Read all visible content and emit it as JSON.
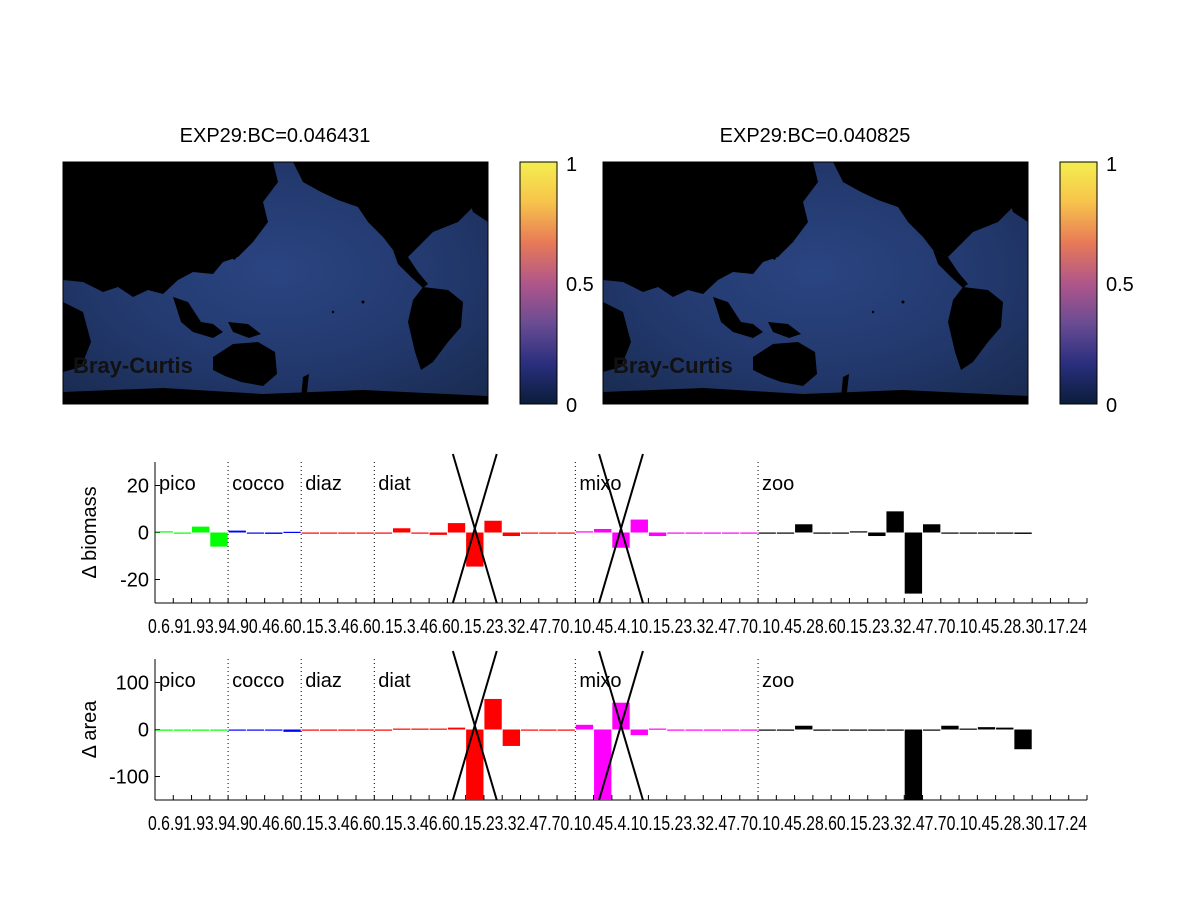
{
  "maps": [
    {
      "title": "EXP29:BC=0.046431",
      "label": "Bray-Curtis",
      "colorbar_ticks": [
        "1",
        "0.5",
        "0"
      ]
    },
    {
      "title": "EXP29:BC=0.040825",
      "label": "Bray-Curtis",
      "colorbar_ticks": [
        "1",
        "0.5",
        "0"
      ]
    }
  ],
  "colors": {
    "pico": "#00ff00",
    "cocco": "#0000ff",
    "diaz": "#ff0000",
    "diat": "#ff0000",
    "mixo": "#ff00ff",
    "zoo": "#000000",
    "land": "#000000",
    "ocean": "#243a66",
    "colormap": [
      "#0a1d3a",
      "#2a2f7e",
      "#6a4c93",
      "#b0568a",
      "#e87a57",
      "#f7c34c",
      "#f4ee4e"
    ]
  },
  "chart_data": [
    {
      "type": "bar",
      "ylabel": "Δ biomass",
      "ylim": [
        -30,
        30
      ],
      "yticks": [
        "20",
        "0",
        "-20"
      ],
      "x_tick_text": "0.6.91.93.94.90.46.60.15.3.46.60.15.3.46.60.15.23.32.47.70.10.45.4.10.15.23.32.47.70.10.45.28.60.15.23.32.47.70.10.45.28.30.17.24",
      "groups": [
        {
          "name": "pico",
          "values": [
            0.5,
            -0.5,
            2.5,
            -6
          ]
        },
        {
          "name": "cocco",
          "values": [
            0.8,
            -0.5,
            -0.6,
            0.3
          ]
        },
        {
          "name": "diaz",
          "values": [
            0,
            0,
            0,
            0
          ]
        },
        {
          "name": "diat",
          "values": [
            0,
            1.8,
            0,
            -1,
            4,
            -14.5,
            5,
            -1.5,
            0,
            0,
            0
          ]
        },
        {
          "name": "mixo",
          "values": [
            0.5,
            1.5,
            -6.5,
            5.5,
            -1.5,
            0,
            0,
            0,
            0,
            0
          ]
        },
        {
          "name": "zoo",
          "values": [
            0,
            -0.5,
            3.5,
            -0.3,
            0,
            0.5,
            -1.5,
            9,
            -26,
            3.5,
            -0.3,
            0,
            -0.3,
            0,
            -0.6
          ]
        }
      ]
    },
    {
      "type": "bar",
      "ylabel": "Δ area",
      "ylim": [
        -150,
        150
      ],
      "yticks": [
        "100",
        "0",
        "-100"
      ],
      "x_tick_text": "0.6.91.93.94.90.46.60.15.3.46.60.15.3.46.60.15.23.32.47.70.10.45.4.10.15.23.32.47.70.10.45.28.60.15.23.32.47.70.10.45.28.30.17.24",
      "groups": [
        {
          "name": "pico",
          "values": [
            0,
            0,
            0,
            0
          ]
        },
        {
          "name": "cocco",
          "values": [
            0,
            -2,
            0,
            -5
          ]
        },
        {
          "name": "diaz",
          "values": [
            0,
            0,
            0,
            0
          ]
        },
        {
          "name": "diat",
          "values": [
            0,
            2,
            2,
            2,
            4,
            -150,
            65,
            -35,
            0,
            0,
            0
          ]
        },
        {
          "name": "mixo",
          "values": [
            10,
            -150,
            57,
            -12,
            2,
            0,
            0,
            0,
            0,
            0
          ]
        },
        {
          "name": "zoo",
          "values": [
            -2,
            0,
            8,
            0,
            0,
            0,
            0,
            -2,
            -150,
            0,
            8,
            2,
            5,
            4,
            -42
          ]
        }
      ]
    }
  ]
}
